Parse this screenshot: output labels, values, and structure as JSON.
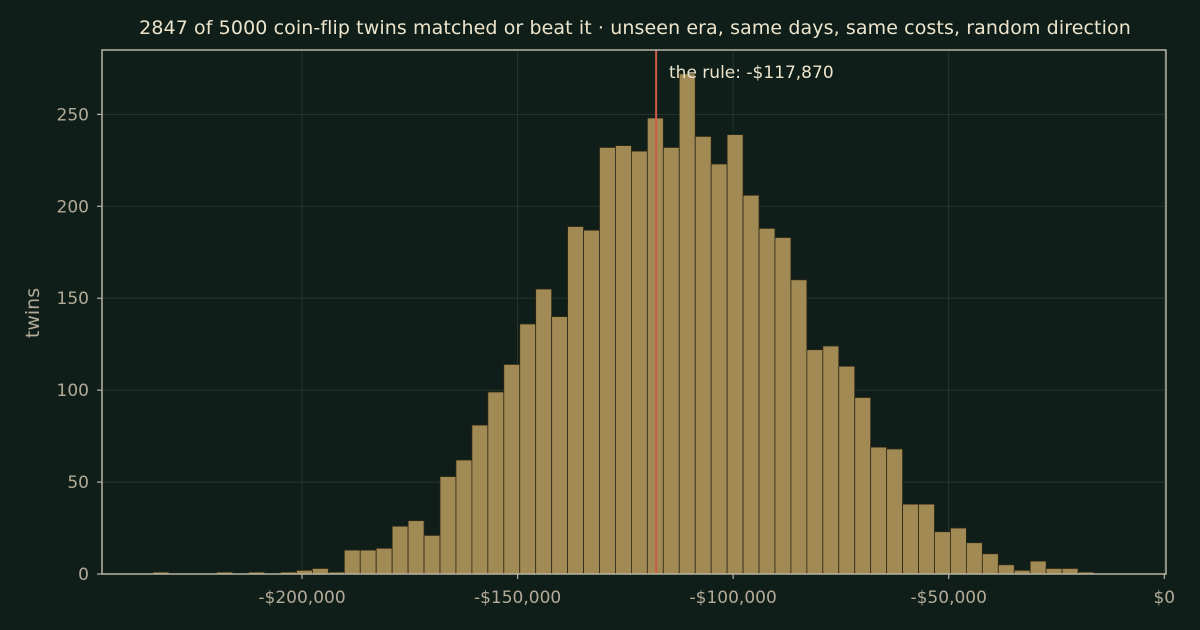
{
  "colors": {
    "background": "#0f1e18",
    "bar_fill": "#a28a55",
    "bar_edge": "#2e2716",
    "rule_line": "#cf5a4a",
    "axis_frame": "#b9b4a2",
    "grid": "#2b3a32",
    "text_primary": "#ece4cc",
    "text_secondary": "#b3ab98"
  },
  "chart_data": {
    "type": "bar",
    "title": "2847 of 5000 coin-flip twins matched or beat it  ·  unseen era, same days, same costs, random direction",
    "xlabel": "",
    "ylabel": "twins",
    "xlim": [
      -246400,
      400
    ],
    "ylim": [
      0,
      285
    ],
    "grid": true,
    "x_ticks": [
      -200000,
      -150000,
      -100000,
      -50000,
      0
    ],
    "x_tick_labels": [
      "-$200,000",
      "-$150,000",
      "-$100,000",
      "-$50,000",
      "$0"
    ],
    "y_ticks": [
      0,
      50,
      100,
      150,
      200,
      250
    ],
    "y_tick_labels": [
      "0",
      "50",
      "100",
      "150",
      "200",
      "250"
    ],
    "bin_start": -234600,
    "bin_width": 3700,
    "values": [
      1,
      0,
      0,
      0,
      1,
      0,
      1,
      0,
      1,
      2,
      3,
      1,
      13,
      13,
      14,
      26,
      29,
      21,
      53,
      62,
      81,
      99,
      114,
      136,
      155,
      140,
      189,
      187,
      232,
      233,
      230,
      248,
      232,
      272,
      238,
      223,
      239,
      206,
      188,
      183,
      160,
      122,
      124,
      113,
      96,
      69,
      68,
      38,
      38,
      23,
      25,
      17,
      11,
      5,
      2,
      7,
      3,
      3,
      1,
      0,
      0
    ],
    "rule": {
      "value": -117870,
      "label": "the rule: -$117,870"
    }
  }
}
